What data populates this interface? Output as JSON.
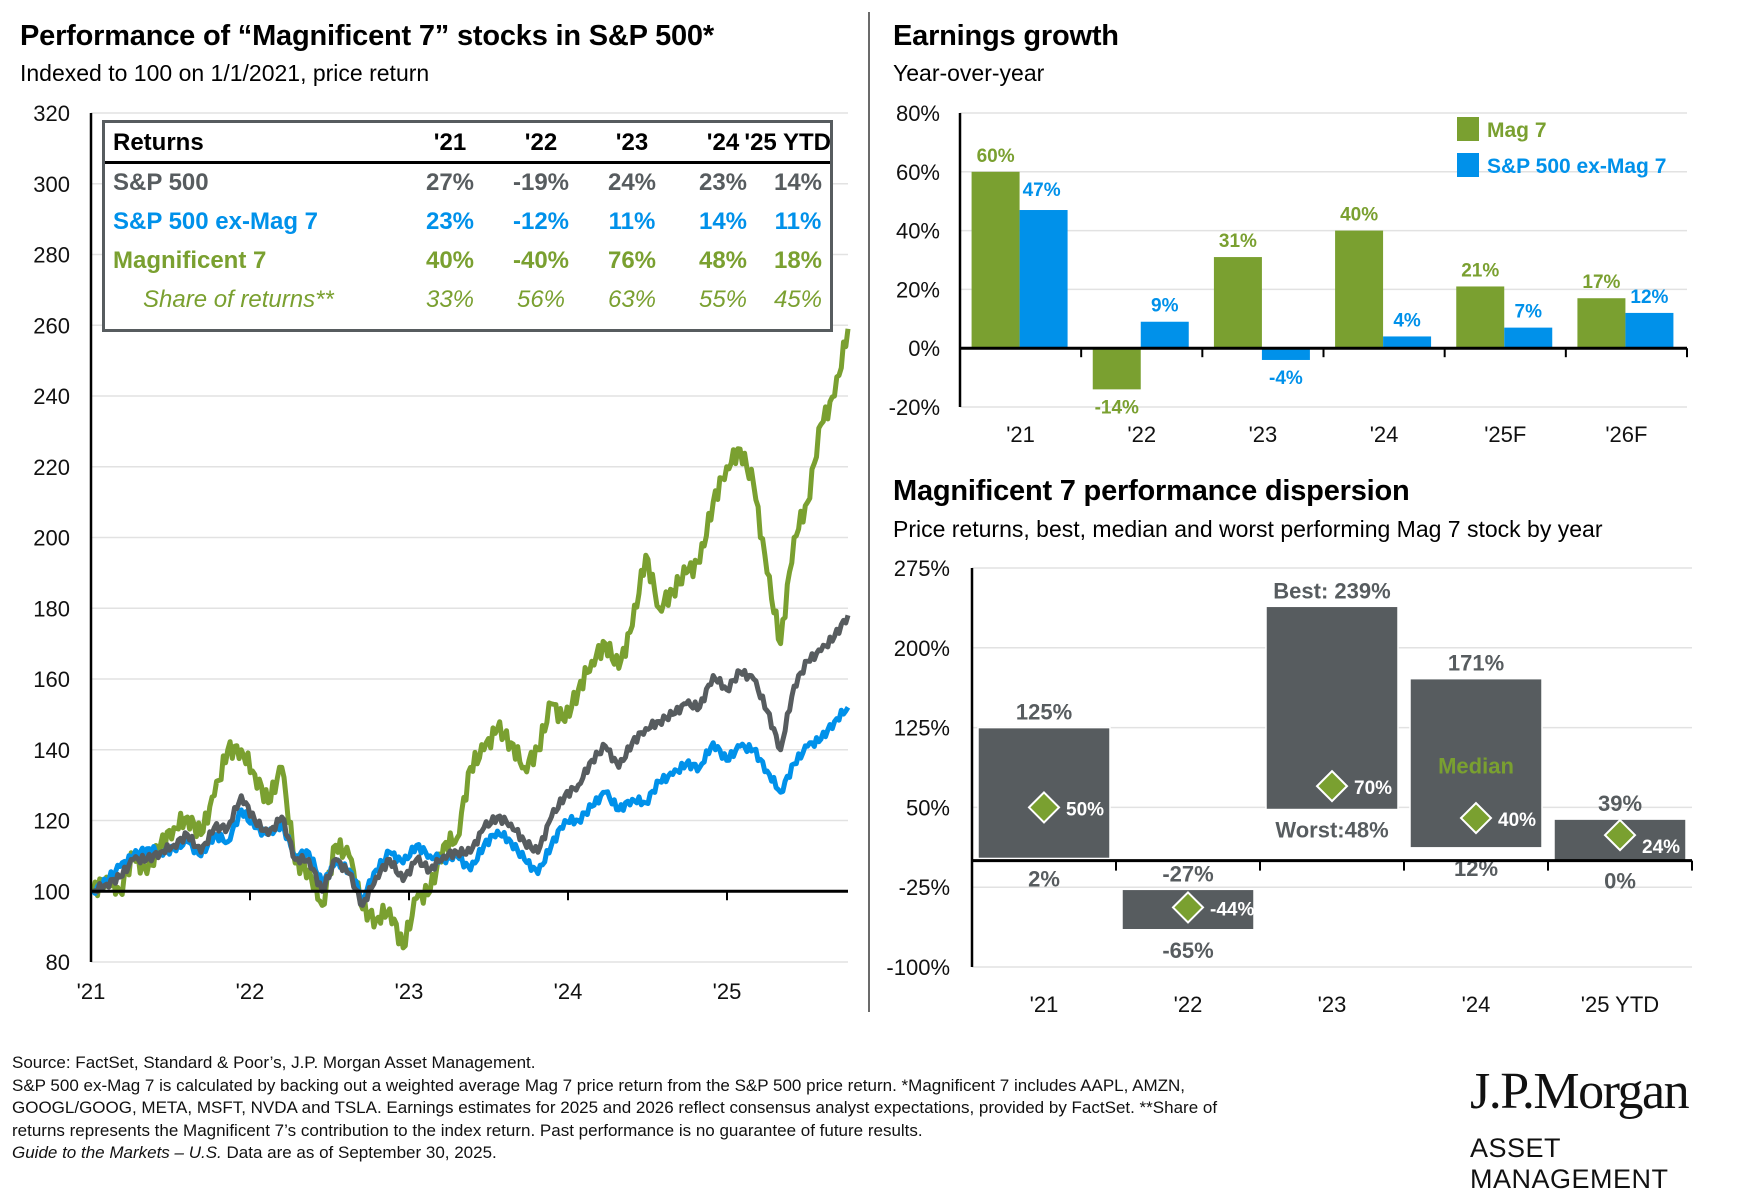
{
  "left_panel": {
    "title": "Performance of “Magnificent 7” stocks in S&P 500*",
    "subtitle": "Indexed to 100 on 1/1/2021, price return"
  },
  "returns_table": {
    "header": [
      "Returns",
      "'21",
      "'22",
      "'23",
      "'24",
      "'25 YTD"
    ],
    "rows": [
      {
        "label": "S&P 500",
        "values": [
          "27%",
          "-19%",
          "24%",
          "23%",
          "14%"
        ],
        "color": "#575c5f",
        "italic": false
      },
      {
        "label": "S&P 500 ex-Mag 7",
        "values": [
          "23%",
          "-12%",
          "11%",
          "14%",
          "11%"
        ],
        "color": "#0091ea",
        "italic": false
      },
      {
        "label": "Magnificent 7",
        "values": [
          "40%",
          "-40%",
          "76%",
          "48%",
          "18%"
        ],
        "color": "#7aa030",
        "italic": false
      },
      {
        "label": "Share of returns**",
        "values": [
          "33%",
          "56%",
          "63%",
          "55%",
          "45%"
        ],
        "color": "#7aa030",
        "italic": true
      }
    ]
  },
  "earnings_panel": {
    "title": "Earnings growth",
    "subtitle": "Year-over-year"
  },
  "dispersion_panel": {
    "title": "Magnificent 7 performance dispersion",
    "subtitle": "Price returns, best, median and worst performing Mag 7 stock by year"
  },
  "chart_data": [
    {
      "type": "line",
      "title": "Performance of “Magnificent 7” stocks in S&P 500*",
      "subtitle": "Indexed to 100 on 1/1/2021, price return",
      "xlabel": "",
      "ylabel": "",
      "x_ticks": [
        "'21",
        "'22",
        "'23",
        "'24",
        "'25"
      ],
      "x_range": [
        "2021-01",
        "2025-09"
      ],
      "x_unit": "month",
      "ylim": [
        80,
        320
      ],
      "y_ticks": [
        80,
        100,
        120,
        140,
        160,
        180,
        200,
        220,
        240,
        260,
        280,
        300,
        320
      ],
      "grid": true,
      "baseline": 100,
      "series": [
        {
          "name": "Magnificent 7",
          "color": "#7aa030",
          "values": [
            100,
            104,
            100,
            110,
            105,
            113,
            118,
            121,
            116,
            127,
            140,
            140,
            133,
            125,
            135,
            108,
            106,
            96,
            113,
            110,
            95,
            92,
            95,
            84,
            98,
            100,
            113,
            115,
            135,
            140,
            146,
            142,
            135,
            140,
            153,
            148,
            157,
            165,
            170,
            163,
            175,
            195,
            180,
            185,
            190,
            193,
            210,
            220,
            225,
            215,
            190,
            170,
            200,
            210,
            232,
            240,
            259
          ]
        },
        {
          "name": "S&P 500",
          "color": "#575c5f",
          "values": [
            100,
            102,
            104,
            109,
            109,
            111,
            113,
            116,
            111,
            118,
            118,
            127,
            120,
            116,
            121,
            109,
            109,
            100,
            109,
            105,
            96,
            104,
            109,
            103,
            109,
            106,
            110,
            111,
            111,
            118,
            121,
            119,
            114,
            111,
            121,
            127,
            130,
            137,
            141,
            135,
            142,
            146,
            148,
            150,
            153,
            152,
            161,
            157,
            162,
            160,
            151,
            140,
            158,
            165,
            168,
            172,
            178
          ]
        },
        {
          "name": "S&P 500 ex-Mag 7",
          "color": "#0091ea",
          "values": [
            100,
            103,
            107,
            110,
            112,
            111,
            112,
            114,
            110,
            116,
            114,
            123,
            118,
            116,
            119,
            110,
            111,
            102,
            108,
            106,
            98,
            106,
            111,
            108,
            113,
            110,
            109,
            110,
            106,
            113,
            117,
            114,
            109,
            105,
            113,
            120,
            120,
            124,
            128,
            123,
            126,
            125,
            131,
            133,
            136,
            135,
            142,
            137,
            141,
            140,
            134,
            128,
            136,
            141,
            143,
            148,
            152
          ]
        }
      ]
    },
    {
      "type": "bar",
      "title": "Earnings growth",
      "subtitle": "Year-over-year",
      "categories": [
        "'21",
        "'22",
        "'23",
        "'24",
        "'25F",
        "'26F"
      ],
      "ylim": [
        -20,
        80
      ],
      "y_ticks": [
        -20,
        0,
        20,
        40,
        60,
        80
      ],
      "y_tick_labels": [
        "-20%",
        "0%",
        "20%",
        "40%",
        "60%",
        "80%"
      ],
      "grid": true,
      "legend": "top-right",
      "series": [
        {
          "name": "Mag 7",
          "color": "#7aa030",
          "values": [
            60,
            -14,
            31,
            40,
            21,
            17
          ],
          "labels": [
            "60%",
            "-14%",
            "31%",
            "40%",
            "21%",
            "17%"
          ]
        },
        {
          "name": "S&P 500 ex-Mag 7",
          "color": "#0091ea",
          "values": [
            47,
            9,
            -4,
            4,
            7,
            12
          ],
          "labels": [
            "47%",
            "9%",
            "-4%",
            "4%",
            "7%",
            "12%"
          ]
        }
      ]
    },
    {
      "type": "range-bar",
      "title": "Magnificent 7 performance dispersion",
      "subtitle": "Price returns, best, median and worst performing Mag 7 stock by year",
      "categories": [
        "'21",
        "'22",
        "'23",
        "'24",
        "'25 YTD"
      ],
      "ylim": [
        -100,
        275
      ],
      "y_ticks": [
        -100,
        -25,
        50,
        125,
        200,
        275
      ],
      "y_tick_labels": [
        "-100%",
        "-25%",
        "50%",
        "125%",
        "200%",
        "275%"
      ],
      "grid": true,
      "bar_color": "#575c5f",
      "median_color": "#7aa030",
      "best": [
        125,
        -27,
        239,
        171,
        39
      ],
      "median": [
        50,
        -44,
        70,
        40,
        24
      ],
      "worst": [
        2,
        -65,
        48,
        12,
        0
      ],
      "best_labels": [
        "125%",
        "-27%",
        "Best: 239%",
        "171%",
        "39%"
      ],
      "median_labels": [
        "50%",
        "-44%",
        "70%",
        "40%",
        "24%"
      ],
      "worst_labels": [
        "2%",
        "-65%",
        "Worst:48%",
        "12%",
        "0%"
      ],
      "annotation": "Median"
    }
  ],
  "footnote": {
    "lines": [
      "Source: FactSet, Standard & Poor’s, J.P. Morgan Asset Management.",
      "S&P 500 ex-Mag 7 is calculated by backing out a weighted average Mag 7 price return from the S&P 500 price return. *Magnificent 7 includes AAPL, AMZN,",
      "GOOGL/GOOG, META, MSFT, NVDA and TSLA. Earnings estimates for 2025 and 2026 reflect consensus analyst expectations, provided by FactSet. **Share of",
      "returns represents the Magnificent 7’s contribution to the index return. Past performance is no guarantee of future results."
    ],
    "guide_italic": "Guide to the Markets – U.S.",
    "guide_rest": " Data are as of September 30, 2025."
  },
  "logo": {
    "name": "J.P.Morgan",
    "sub": "ASSET MANAGEMENT"
  }
}
